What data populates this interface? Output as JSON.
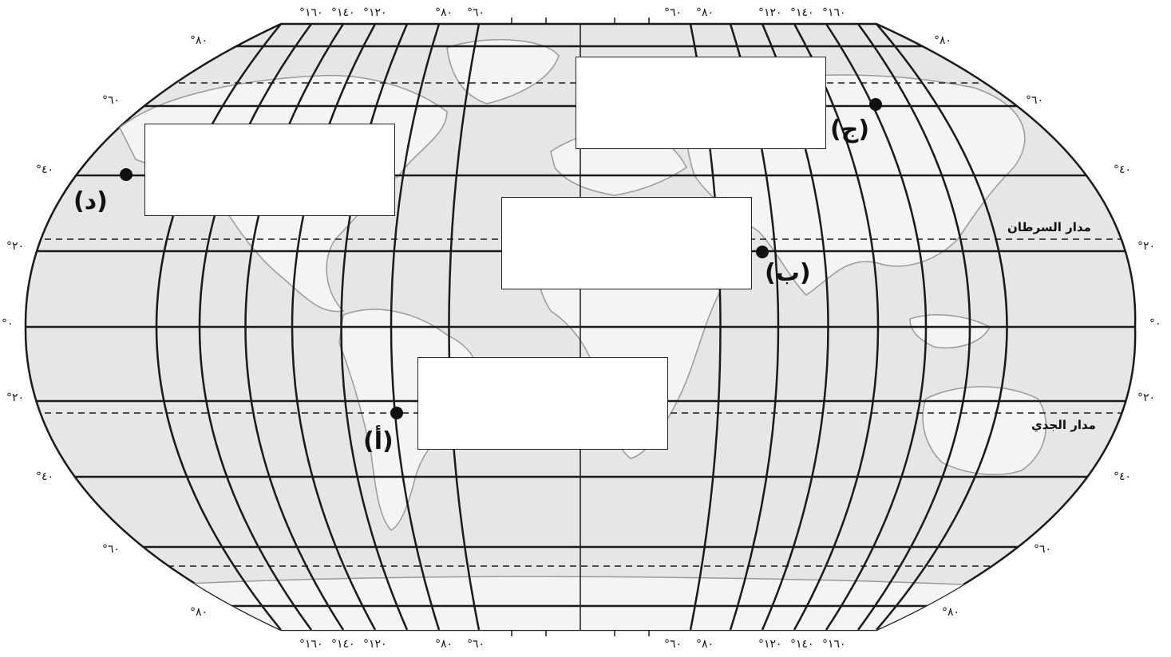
{
  "map": {
    "top_longitude_labels": [
      "°١٦٠",
      "°١٤٠",
      "°١٢٠",
      "°٨٠",
      "°٦٠",
      "°٦٠",
      "°٨٠",
      "°١٢٠",
      "°١٤٠",
      "°١٦٠"
    ],
    "bottom_longitude_labels": [
      "°١٦٠",
      "°١٤٠",
      "°١٢٠",
      "°٨٠",
      "°٦٠",
      "°٦٠",
      "°٨٠",
      "°١٢٠",
      "°١٤٠",
      "°١٦٠"
    ],
    "left_latitude_labels": [
      "°٨٠",
      "°٦٠",
      "°٤٠",
      "°٢٠",
      "°٠",
      "°٢٠",
      "°٤٠",
      "°٦٠",
      "°٨٠"
    ],
    "right_latitude_labels": [
      "°٨٠",
      "°٦٠",
      "°٤٠",
      "°٢٠",
      "°٠",
      "°٢٠",
      "°٤٠",
      "°٦٠",
      "°٨٠"
    ],
    "tropic_of_cancer": "مدار السرطان",
    "tropic_of_capricorn": "مدار الجدي",
    "points": [
      {
        "id": "a",
        "label": "(أ)"
      },
      {
        "id": "b",
        "label": "(ب)"
      },
      {
        "id": "c",
        "label": "(ج)"
      },
      {
        "id": "d",
        "label": "(د)"
      }
    ],
    "answer_boxes": 4,
    "colors": {
      "land": "#b8b8b8",
      "ocean": "#e6e6e6",
      "lines": "#1a1a1a"
    }
  }
}
